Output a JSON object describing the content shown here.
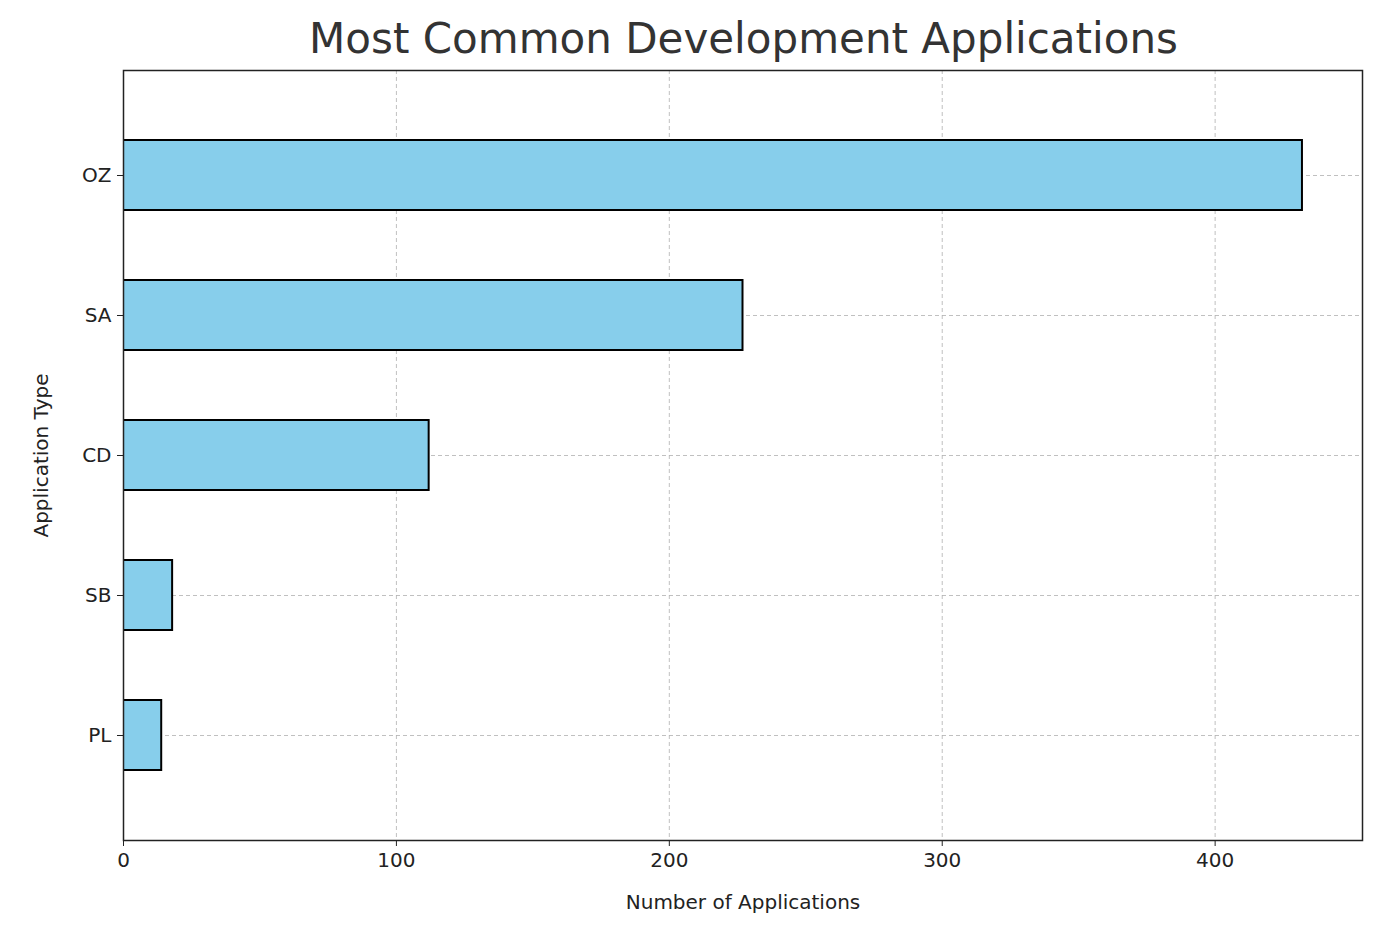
{
  "chart_data": {
    "type": "bar",
    "title": "Most Common Development Applications",
    "orientation": "horizontal",
    "categories": [
      "OZ",
      "SA",
      "CD",
      "SB",
      "PL"
    ],
    "values": [
      432,
      227,
      112,
      18,
      14
    ],
    "color": "#87ceeb",
    "x_label": "Number of Applications",
    "y_label": "Application Type",
    "xlim": [
      0,
      454
    ],
    "xticks": [
      0,
      100,
      200,
      300,
      400
    ],
    "grid": true
  }
}
